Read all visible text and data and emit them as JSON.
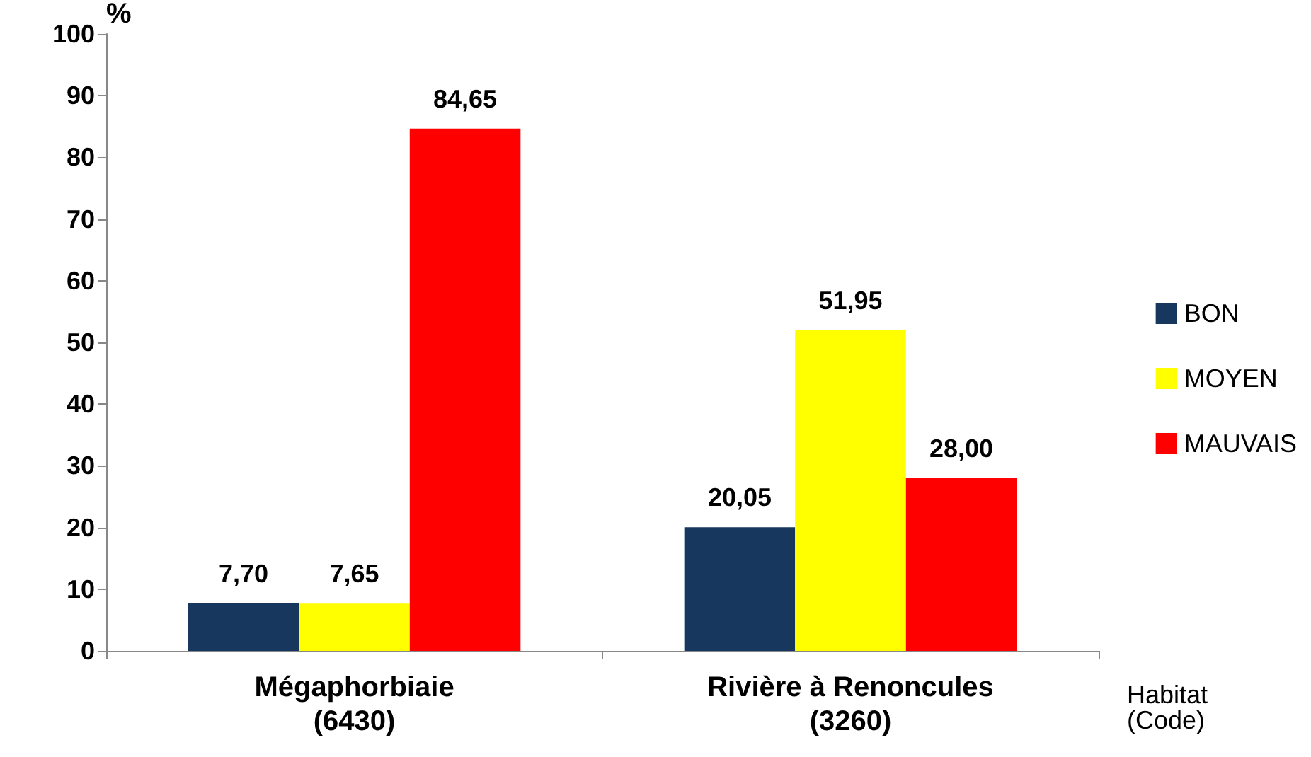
{
  "chart_data": {
    "type": "bar",
    "ylabel": "%",
    "xlabel": "Habitat\n(Code)",
    "categories": [
      "Mégaphorbiaie\n(6430)",
      "Rivière à Renoncules\n(3260)"
    ],
    "series": [
      {
        "name": "BON",
        "color": "#17375e",
        "values": [
          7.7,
          20.05
        ],
        "value_labels": [
          "7,70",
          "20,05"
        ]
      },
      {
        "name": "MOYEN",
        "color": "#ffff00",
        "values": [
          7.65,
          51.95
        ],
        "value_labels": [
          "7,65",
          "51,95"
        ]
      },
      {
        "name": "MAUVAIS",
        "color": "#ff0000",
        "values": [
          84.65,
          28.0
        ],
        "value_labels": [
          "84,65",
          "28,00"
        ]
      }
    ],
    "ylim": [
      0,
      100
    ],
    "yticks": [
      0,
      10,
      20,
      30,
      40,
      50,
      60,
      70,
      80,
      90,
      100
    ],
    "grid": false,
    "legend": "right"
  }
}
